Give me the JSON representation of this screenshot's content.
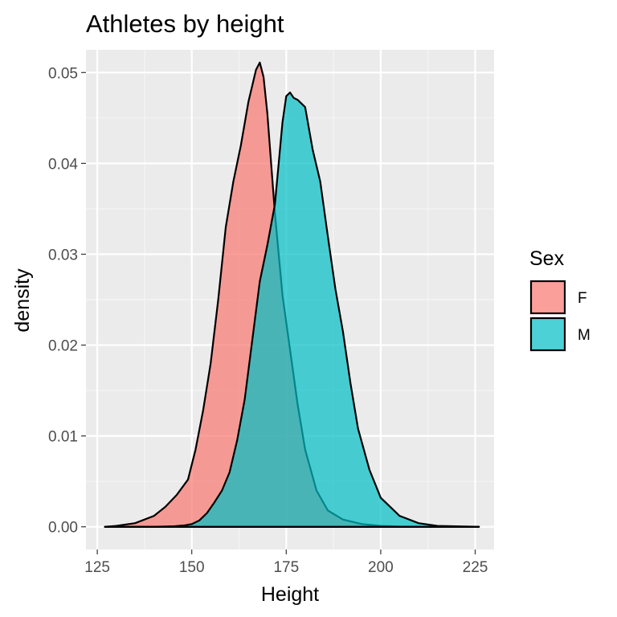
{
  "chart_data": {
    "type": "area",
    "subtype": "density",
    "title": "Athletes by height",
    "xlabel": "Height",
    "ylabel": "density",
    "xlim": [
      122,
      230
    ],
    "ylim": [
      -0.0025,
      0.0525
    ],
    "x_ticks": [
      125,
      150,
      175,
      200,
      225
    ],
    "y_ticks": [
      0.0,
      0.01,
      0.02,
      0.03,
      0.04,
      0.05
    ],
    "x_tick_labels": [
      "125",
      "150",
      "175",
      "200",
      "225"
    ],
    "y_tick_labels": [
      "0.00",
      "0.01",
      "0.02",
      "0.03",
      "0.04",
      "0.05"
    ],
    "grid": true,
    "legend": {
      "title": "Sex",
      "position": "right"
    },
    "series": [
      {
        "name": "F",
        "color": "#F8766D",
        "x": [
          127,
          130,
          135,
          140,
          143,
          146,
          149,
          151,
          153,
          155,
          157,
          159,
          161,
          163,
          165,
          167,
          168,
          169,
          170,
          172,
          174,
          176,
          178,
          180,
          183,
          186,
          190,
          195,
          200,
          205,
          226
        ],
        "y": [
          0.0,
          0.0001,
          0.0004,
          0.0012,
          0.0022,
          0.0035,
          0.0052,
          0.0085,
          0.0128,
          0.018,
          0.025,
          0.033,
          0.038,
          0.042,
          0.0468,
          0.0503,
          0.0511,
          0.0495,
          0.0455,
          0.0345,
          0.0255,
          0.0195,
          0.0135,
          0.0085,
          0.004,
          0.0018,
          0.0008,
          0.0003,
          0.0001,
          3e-05,
          0.0
        ]
      },
      {
        "name": "M",
        "color": "#00BFC4",
        "x": [
          127,
          140,
          145,
          148,
          150,
          152,
          154,
          156,
          158,
          160,
          162,
          164,
          166,
          168,
          170,
          172,
          174,
          175,
          176,
          177,
          178,
          180,
          182,
          184,
          186,
          188,
          190,
          192,
          194,
          197,
          200,
          205,
          210,
          215,
          226
        ],
        "y": [
          0.0,
          0.0,
          5e-05,
          0.00015,
          0.0003,
          0.0007,
          0.0015,
          0.0027,
          0.004,
          0.006,
          0.0095,
          0.014,
          0.0205,
          0.027,
          0.031,
          0.0355,
          0.0445,
          0.0474,
          0.0478,
          0.0472,
          0.047,
          0.0462,
          0.0415,
          0.038,
          0.032,
          0.0262,
          0.0215,
          0.0158,
          0.0108,
          0.0063,
          0.0032,
          0.0012,
          0.0004,
          0.0001,
          0.0
        ]
      }
    ]
  }
}
